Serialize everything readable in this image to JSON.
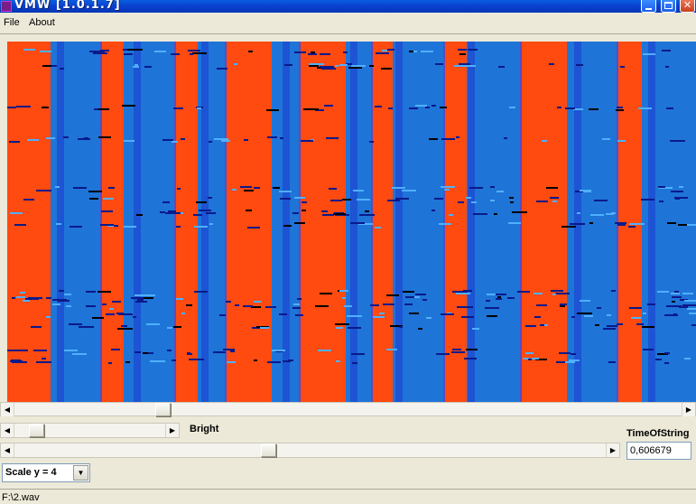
{
  "window": {
    "title": "VMW [1.0.1.7]"
  },
  "menu": {
    "file": "File",
    "about": "About"
  },
  "spectrogram": {
    "colors": {
      "low": "#1f74d8",
      "high": "#ff4a10",
      "accent_light": "#4fb0ff",
      "accent_dark": "#0a1a8a"
    }
  },
  "controls": {
    "bright_label": "Bright",
    "time_label": "TimeOfString",
    "time_value": "0,606679",
    "scale_value": "Scale y = 4"
  },
  "status": {
    "path": "F:\\2.wav"
  }
}
